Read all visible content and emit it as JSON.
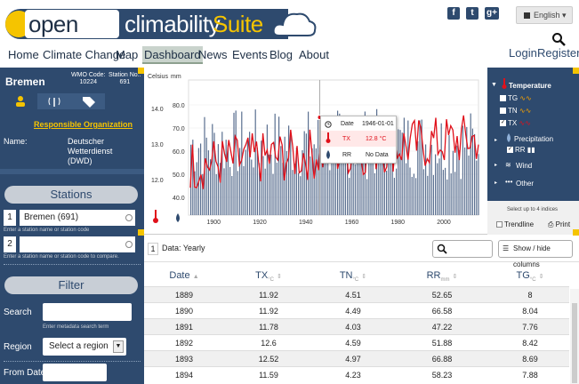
{
  "brand": {
    "part1": "open",
    "part2": "climability",
    "part3": "Suite"
  },
  "social": [
    "f",
    "t",
    "g+"
  ],
  "language": "English",
  "nav": [
    "Home",
    "Climate Change",
    "Map",
    "Dashboard",
    "News",
    "Events",
    "Blog",
    "About"
  ],
  "auth": {
    "login": "Login",
    "register": "Register"
  },
  "station": {
    "name": "Bremen",
    "wmo_label": "WMO Code:",
    "wmo_value": "10224",
    "stno_label": "Station No.:",
    "stno_value": "691",
    "responsible": "Responsible Organization",
    "name_label": "Name:",
    "name_value": "Deutscher Wetterdienst (DWD)"
  },
  "stations": {
    "title": "Stations",
    "s1_num": "1",
    "s1_value": "Bremen (691)",
    "s1_hint": "Enter a station name or station code",
    "s2_num": "2",
    "s2_hint": "Enter a station name or station code to compare."
  },
  "filter": {
    "title": "Filter",
    "search_label": "Search",
    "search_hint": "Enter metadata search term",
    "region_label": "Region",
    "region_value": "Select a region",
    "from_label": "From Date"
  },
  "chart": {
    "axis1": "Celsius",
    "axis2": "mm",
    "tooltip": {
      "date_label": "Date",
      "date_value": "1946-01-01",
      "tx_label": "TX",
      "tx_value": "12.8 °C",
      "rr_label": "RR",
      "rr_value": "No Data"
    }
  },
  "chart_data": {
    "type": "line",
    "x_ticks": [
      "1900",
      "1920",
      "1940",
      "1960",
      "1980",
      "2000"
    ],
    "y_ticks_celsius": [
      "14.0",
      "13.0",
      "12.0"
    ],
    "y_ticks_mm": [
      "80.0",
      "70.0",
      "60.0",
      "50.0",
      "40.0"
    ],
    "xlim": [
      1889,
      2015
    ],
    "ylim_celsius": [
      11.2,
      14.6
    ],
    "series": [
      {
        "name": "TX",
        "color": "#e0101a",
        "kind": "line"
      },
      {
        "name": "RR",
        "color": "#5a6f90",
        "kind": "bar"
      }
    ]
  },
  "series_panel": {
    "temperature": "Temperature",
    "tg": "TG",
    "tn": "TN",
    "tx": "TX",
    "precipitation": "Precipitation",
    "rr": "RR",
    "wind": "Wind",
    "other": "Other",
    "hint": "Select up to 4 indices",
    "trendline": "Trendline",
    "print": "Print"
  },
  "data_table": {
    "num": "1",
    "title": "Data: Yearly",
    "toggle": "Show / hide columns",
    "headers": [
      {
        "label": "Date",
        "unit": ""
      },
      {
        "label": "TX",
        "unit": "°C"
      },
      {
        "label": "TN",
        "unit": "°C"
      },
      {
        "label": "RR",
        "unit": "mm"
      },
      {
        "label": "TG",
        "unit": "°C"
      }
    ],
    "rows": [
      [
        "1889",
        "11.92",
        "4.51",
        "52.65",
        "8"
      ],
      [
        "1890",
        "11.92",
        "4.49",
        "66.58",
        "8.04"
      ],
      [
        "1891",
        "11.78",
        "4.03",
        "47.22",
        "7.76"
      ],
      [
        "1892",
        "12.6",
        "4.59",
        "51.88",
        "8.42"
      ],
      [
        "1893",
        "12.52",
        "4.97",
        "66.88",
        "8.69"
      ],
      [
        "1894",
        "11.59",
        "4.23",
        "58.23",
        "7.88"
      ]
    ]
  },
  "colors": {
    "navy": "#2e4a6e",
    "accent": "#f5c400",
    "tx_red": "#e0101a"
  }
}
